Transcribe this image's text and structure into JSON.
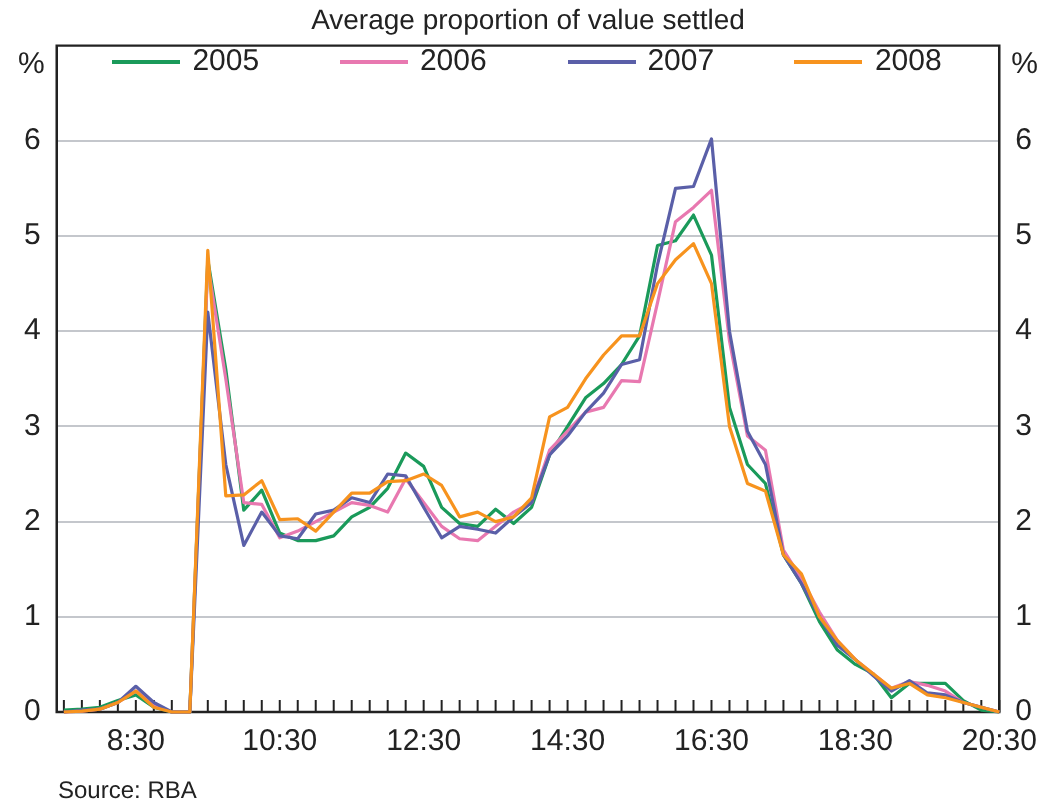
{
  "chart_data": {
    "type": "line",
    "title": "Average proportion of value settled",
    "ylabel": "%",
    "y2label": "%",
    "x": [
      7.5,
      7.75,
      8,
      8.25,
      8.5,
      8.75,
      9,
      9.25,
      9.5,
      9.75,
      10,
      10.25,
      10.5,
      10.75,
      11,
      11.25,
      11.5,
      11.75,
      12,
      12.25,
      12.5,
      12.75,
      13,
      13.25,
      13.5,
      13.75,
      14,
      14.25,
      14.5,
      14.75,
      15,
      15.25,
      15.5,
      15.75,
      16,
      16.25,
      16.5,
      16.75,
      17,
      17.25,
      17.5,
      17.75,
      18,
      18.25,
      18.5,
      18.75,
      19,
      19.25,
      19.5,
      19.75,
      20,
      20.25,
      20.5
    ],
    "series": [
      {
        "name": "2005",
        "color": "#1a9a5a",
        "values": [
          0.02,
          0.03,
          0.05,
          0.12,
          0.18,
          0.05,
          0,
          0,
          4.75,
          3.6,
          2.12,
          2.33,
          1.88,
          1.8,
          1.8,
          1.85,
          2.05,
          2.15,
          2.35,
          2.72,
          2.58,
          2.15,
          1.98,
          1.95,
          2.13,
          1.98,
          2.15,
          2.7,
          3.0,
          3.3,
          3.45,
          3.65,
          3.95,
          4.9,
          4.95,
          5.22,
          4.8,
          3.2,
          2.6,
          2.4,
          1.65,
          1.35,
          0.95,
          0.65,
          0.5,
          0.4,
          0.15,
          0.3,
          0.3,
          0.3,
          0.12,
          0.02,
          0
        ]
      },
      {
        "name": "2006",
        "color": "#e878b0",
        "values": [
          0,
          0.01,
          0.03,
          0.1,
          0.22,
          0.08,
          0,
          0,
          4.7,
          3.5,
          2.2,
          2.18,
          1.83,
          1.9,
          2.0,
          2.1,
          2.2,
          2.17,
          2.1,
          2.45,
          2.2,
          1.95,
          1.82,
          1.8,
          1.95,
          2.1,
          2.2,
          2.75,
          2.95,
          3.15,
          3.2,
          3.48,
          3.47,
          4.3,
          5.15,
          5.3,
          5.48,
          3.9,
          2.9,
          2.75,
          1.7,
          1.4,
          1.05,
          0.75,
          0.55,
          0.4,
          0.25,
          0.32,
          0.28,
          0.22,
          0.1,
          0.05,
          0
        ]
      },
      {
        "name": "2007",
        "color": "#5a5fa8",
        "values": [
          0,
          0.02,
          0.03,
          0.1,
          0.27,
          0.1,
          0,
          0,
          4.2,
          2.6,
          1.75,
          2.1,
          1.85,
          1.82,
          2.08,
          2.12,
          2.25,
          2.2,
          2.5,
          2.48,
          2.15,
          1.83,
          1.95,
          1.92,
          1.88,
          2.05,
          2.2,
          2.7,
          2.9,
          3.15,
          3.35,
          3.65,
          3.7,
          4.7,
          5.5,
          5.52,
          6.02,
          4.0,
          2.95,
          2.6,
          1.65,
          1.35,
          1.0,
          0.7,
          0.55,
          0.38,
          0.22,
          0.33,
          0.2,
          0.18,
          0.1,
          0.05,
          0
        ]
      },
      {
        "name": "2008",
        "color": "#f7931e",
        "values": [
          0,
          0.01,
          0.03,
          0.1,
          0.22,
          0.05,
          0,
          0,
          4.85,
          2.27,
          2.28,
          2.43,
          2.02,
          2.03,
          1.9,
          2.1,
          2.3,
          2.3,
          2.42,
          2.43,
          2.5,
          2.38,
          2.05,
          2.1,
          2.0,
          2.05,
          2.25,
          3.1,
          3.2,
          3.5,
          3.75,
          3.95,
          3.95,
          4.5,
          4.75,
          4.92,
          4.5,
          3.0,
          2.4,
          2.32,
          1.65,
          1.45,
          1.0,
          0.75,
          0.55,
          0.4,
          0.25,
          0.3,
          0.18,
          0.15,
          0.1,
          0.05,
          0
        ]
      }
    ],
    "xlim": [
      7.4,
      20.5
    ],
    "xticks": [
      {
        "value": 7.5,
        "label": null
      },
      {
        "value": 7.75,
        "label": null
      },
      {
        "value": 8,
        "label": null
      },
      {
        "value": 8.25,
        "label": null
      },
      {
        "value": 8.5,
        "label": "8:30"
      },
      {
        "value": 8.75,
        "label": null
      },
      {
        "value": 9,
        "label": null
      },
      {
        "value": 9.25,
        "label": null
      },
      {
        "value": 9.5,
        "label": null
      },
      {
        "value": 9.75,
        "label": null
      },
      {
        "value": 10,
        "label": null
      },
      {
        "value": 10.25,
        "label": null
      },
      {
        "value": 10.5,
        "label": "10:30"
      },
      {
        "value": 10.75,
        "label": null
      },
      {
        "value": 11,
        "label": null
      },
      {
        "value": 11.25,
        "label": null
      },
      {
        "value": 11.5,
        "label": null
      },
      {
        "value": 11.75,
        "label": null
      },
      {
        "value": 12,
        "label": null
      },
      {
        "value": 12.25,
        "label": null
      },
      {
        "value": 12.5,
        "label": "12:30"
      },
      {
        "value": 12.75,
        "label": null
      },
      {
        "value": 13,
        "label": null
      },
      {
        "value": 13.25,
        "label": null
      },
      {
        "value": 13.5,
        "label": null
      },
      {
        "value": 13.75,
        "label": null
      },
      {
        "value": 14,
        "label": null
      },
      {
        "value": 14.25,
        "label": null
      },
      {
        "value": 14.5,
        "label": "14:30"
      },
      {
        "value": 14.75,
        "label": null
      },
      {
        "value": 15,
        "label": null
      },
      {
        "value": 15.25,
        "label": null
      },
      {
        "value": 15.5,
        "label": null
      },
      {
        "value": 15.75,
        "label": null
      },
      {
        "value": 16,
        "label": null
      },
      {
        "value": 16.25,
        "label": null
      },
      {
        "value": 16.5,
        "label": "16:30"
      },
      {
        "value": 16.75,
        "label": null
      },
      {
        "value": 17,
        "label": null
      },
      {
        "value": 17.25,
        "label": null
      },
      {
        "value": 17.5,
        "label": null
      },
      {
        "value": 17.75,
        "label": null
      },
      {
        "value": 18,
        "label": null
      },
      {
        "value": 18.25,
        "label": null
      },
      {
        "value": 18.5,
        "label": "18:30"
      },
      {
        "value": 18.75,
        "label": null
      },
      {
        "value": 19,
        "label": null
      },
      {
        "value": 19.25,
        "label": null
      },
      {
        "value": 19.5,
        "label": null
      },
      {
        "value": 19.75,
        "label": null
      },
      {
        "value": 20,
        "label": null
      },
      {
        "value": 20.25,
        "label": null
      },
      {
        "value": 20.5,
        "label": "20:30"
      }
    ],
    "ylim": [
      0,
      7
    ],
    "yticks": [
      0,
      1,
      2,
      3,
      4,
      5,
      6
    ],
    "y2lim": [
      0,
      7
    ],
    "y2ticks": [
      0,
      1,
      2,
      3,
      4,
      5,
      6
    ],
    "grid": "y",
    "legend": "top",
    "marker": "none",
    "line_style": "solid",
    "annotations": [
      "Source: RBA"
    ]
  }
}
